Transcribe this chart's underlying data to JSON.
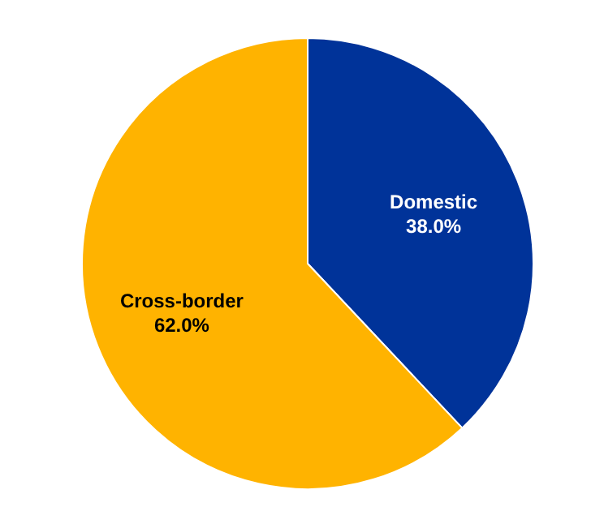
{
  "chart_data": {
    "type": "pie",
    "categories": [
      "Domestic",
      "Cross-border"
    ],
    "values": [
      38.0,
      62.0
    ],
    "colors": [
      "#003399",
      "#ffb300"
    ],
    "value_labels": [
      "38.0%",
      "62.0%"
    ],
    "legend": false
  }
}
